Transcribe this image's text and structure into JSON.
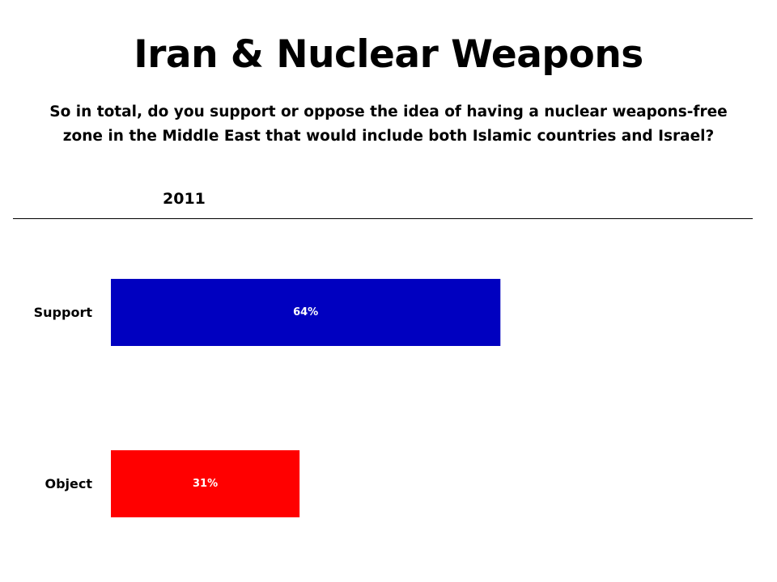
{
  "title": "Iran & Nuclear Weapons",
  "subtitle": "So in total, do you support or oppose the idea of having a nuclear weapons-free zone in the Middle East that would include both Islamic countries and Israel?",
  "year_label": "2011",
  "colors": {
    "support": "#0000C0",
    "object": "#FF0000",
    "bar_label": "#ffffff"
  },
  "chart_data": {
    "type": "bar",
    "orientation": "horizontal",
    "title": "Iran & Nuclear Weapons",
    "subtitle": "So in total, do you support or oppose the idea of having a nuclear weapons-free zone in the Middle East that would include both Islamic countries and Israel?",
    "series": [
      {
        "name": "2011",
        "values": [
          64,
          31
        ]
      }
    ],
    "categories": [
      "Support",
      "Object"
    ],
    "data_labels": [
      "64%",
      "31%"
    ],
    "unit": "%",
    "xlim": [
      0,
      100
    ],
    "grid": false,
    "legend": "none"
  }
}
